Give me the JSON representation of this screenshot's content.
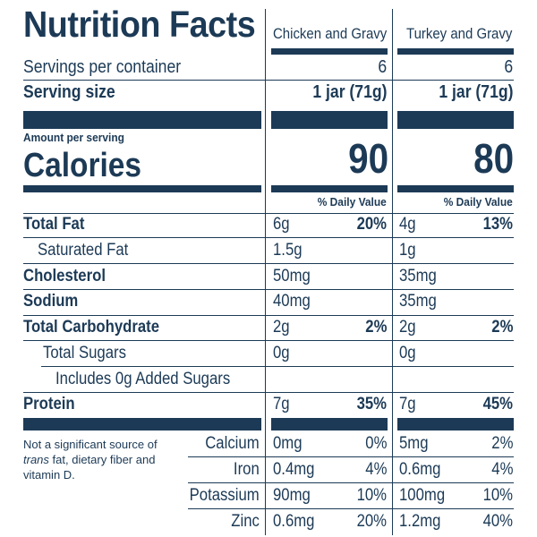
{
  "title": "Nutrition Facts",
  "products": [
    {
      "name": "Chicken and Gravy",
      "servings_per_container": "6",
      "serving_size": "1 jar (71g)",
      "calories": "90",
      "nutrients": {
        "total_fat": {
          "amount": "6g",
          "dv": "20%"
        },
        "saturated_fat": {
          "amount": "1.5g"
        },
        "cholesterol": {
          "amount": "50mg"
        },
        "sodium": {
          "amount": "40mg"
        },
        "total_carbohydrate": {
          "amount": "2g",
          "dv": "2%"
        },
        "total_sugars": {
          "amount": "0g"
        },
        "protein": {
          "amount": "7g",
          "dv": "35%"
        }
      },
      "minerals": {
        "calcium": {
          "amount": "0mg",
          "dv": "0%"
        },
        "iron": {
          "amount": "0.4mg",
          "dv": "4%"
        },
        "potassium": {
          "amount": "90mg",
          "dv": "10%"
        },
        "zinc": {
          "amount": "0.6mg",
          "dv": "20%"
        }
      }
    },
    {
      "name": "Turkey and Gravy",
      "servings_per_container": "6",
      "serving_size": "1 jar (71g)",
      "calories": "80",
      "nutrients": {
        "total_fat": {
          "amount": "4g",
          "dv": "13%"
        },
        "saturated_fat": {
          "amount": "1g"
        },
        "cholesterol": {
          "amount": "35mg"
        },
        "sodium": {
          "amount": "35mg"
        },
        "total_carbohydrate": {
          "amount": "2g",
          "dv": "2%"
        },
        "total_sugars": {
          "amount": "0g"
        },
        "protein": {
          "amount": "7g",
          "dv": "45%"
        }
      },
      "minerals": {
        "calcium": {
          "amount": "5mg",
          "dv": "2%"
        },
        "iron": {
          "amount": "0.6mg",
          "dv": "4%"
        },
        "potassium": {
          "amount": "100mg",
          "dv": "10%"
        },
        "zinc": {
          "amount": "1.2mg",
          "dv": "40%"
        }
      }
    }
  ],
  "labels": {
    "servings_per_container": "Servings per container",
    "serving_size": "Serving size",
    "amount_per_serving": "Amount per serving",
    "calories": "Calories",
    "daily_value": "% Daily Value",
    "total_fat": "Total Fat",
    "saturated_fat": "Saturated Fat",
    "cholesterol": "Cholesterol",
    "sodium": "Sodium",
    "total_carbohydrate": "Total Carbohydrate",
    "total_sugars": "Total Sugars",
    "added_sugars": "Includes 0g Added Sugars",
    "protein": "Protein",
    "calcium": "Calcium",
    "iron": "Iron",
    "potassium": "Potassium",
    "zinc": "Zinc"
  },
  "footnote": {
    "prefix": "Not a significant source of",
    "italic": "trans",
    "suffix": "fat, dietary fiber and vitamin D."
  },
  "colors": {
    "ink": "#1c3a56",
    "background": "#ffffff"
  }
}
